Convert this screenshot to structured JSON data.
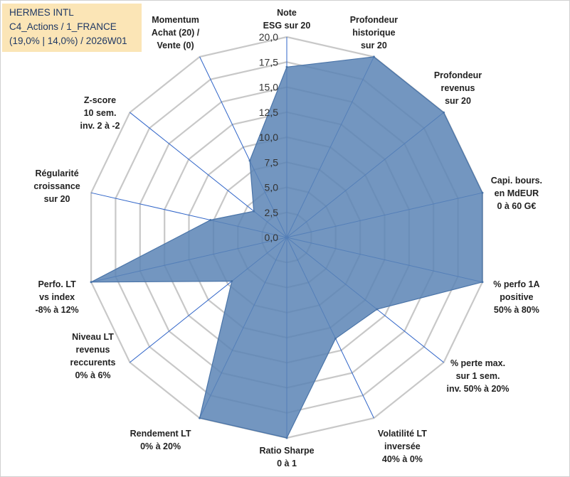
{
  "info": {
    "line1": "HERMES INTL",
    "line2": "C4_Actions / 1_FRANCE",
    "line3": "(19,0% | 14,0%) / 2026W01"
  },
  "chart_data": {
    "type": "radar",
    "title": "",
    "rmin": 0,
    "rmax": 20,
    "ticks": [
      {
        "value": 0,
        "label": "0,0"
      },
      {
        "value": 2.5,
        "label": "2,5"
      },
      {
        "value": 5,
        "label": "5,0"
      },
      {
        "value": 7.5,
        "label": "7,5"
      },
      {
        "value": 10,
        "label": "10,0"
      },
      {
        "value": 12.5,
        "label": "12,5"
      },
      {
        "value": 15,
        "label": "15,0"
      },
      {
        "value": 17.5,
        "label": "17,5"
      },
      {
        "value": 20,
        "label": "20,0"
      }
    ],
    "categories": [
      [
        "Note",
        "ESG sur 20"
      ],
      [
        "Profondeur",
        "historique",
        "sur 20"
      ],
      [
        "Profondeur",
        "revenus",
        "sur 20"
      ],
      [
        "Capi. bours.",
        "en MdEUR",
        "0 à 60 G€"
      ],
      [
        "% perfo 1A",
        "positive",
        "50% à 80%"
      ],
      [
        "% perte max.",
        "sur 1 sem.",
        "inv. 50% à 20%"
      ],
      [
        "Volatilité LT",
        "inversée",
        "40% à 0%"
      ],
      [
        "Ratio Sharpe",
        "0 à 1"
      ],
      [
        "Rendement LT",
        "0% à 20%"
      ],
      [
        "Niveau LT",
        "revenus",
        "reccurents",
        "0% à 6%"
      ],
      [
        "Perfo. LT",
        "vs index",
        "-8% à 12%"
      ],
      [
        "Régularité",
        "croissance",
        "sur 20"
      ],
      [
        "Z-score",
        "10 sem.",
        "inv. 2 à -2"
      ],
      [
        "Momentum",
        "Achat (20) /",
        "Vente (0)"
      ]
    ],
    "series": [
      {
        "name": "HERMES INTL",
        "color": "#5b84b5",
        "values": [
          17.0,
          20.0,
          20.0,
          20.0,
          20.0,
          11.5,
          11.2,
          20.0,
          20.0,
          7.0,
          20.0,
          7.8,
          4.2,
          8.5
        ]
      }
    ],
    "grid": true,
    "legend": "none"
  }
}
